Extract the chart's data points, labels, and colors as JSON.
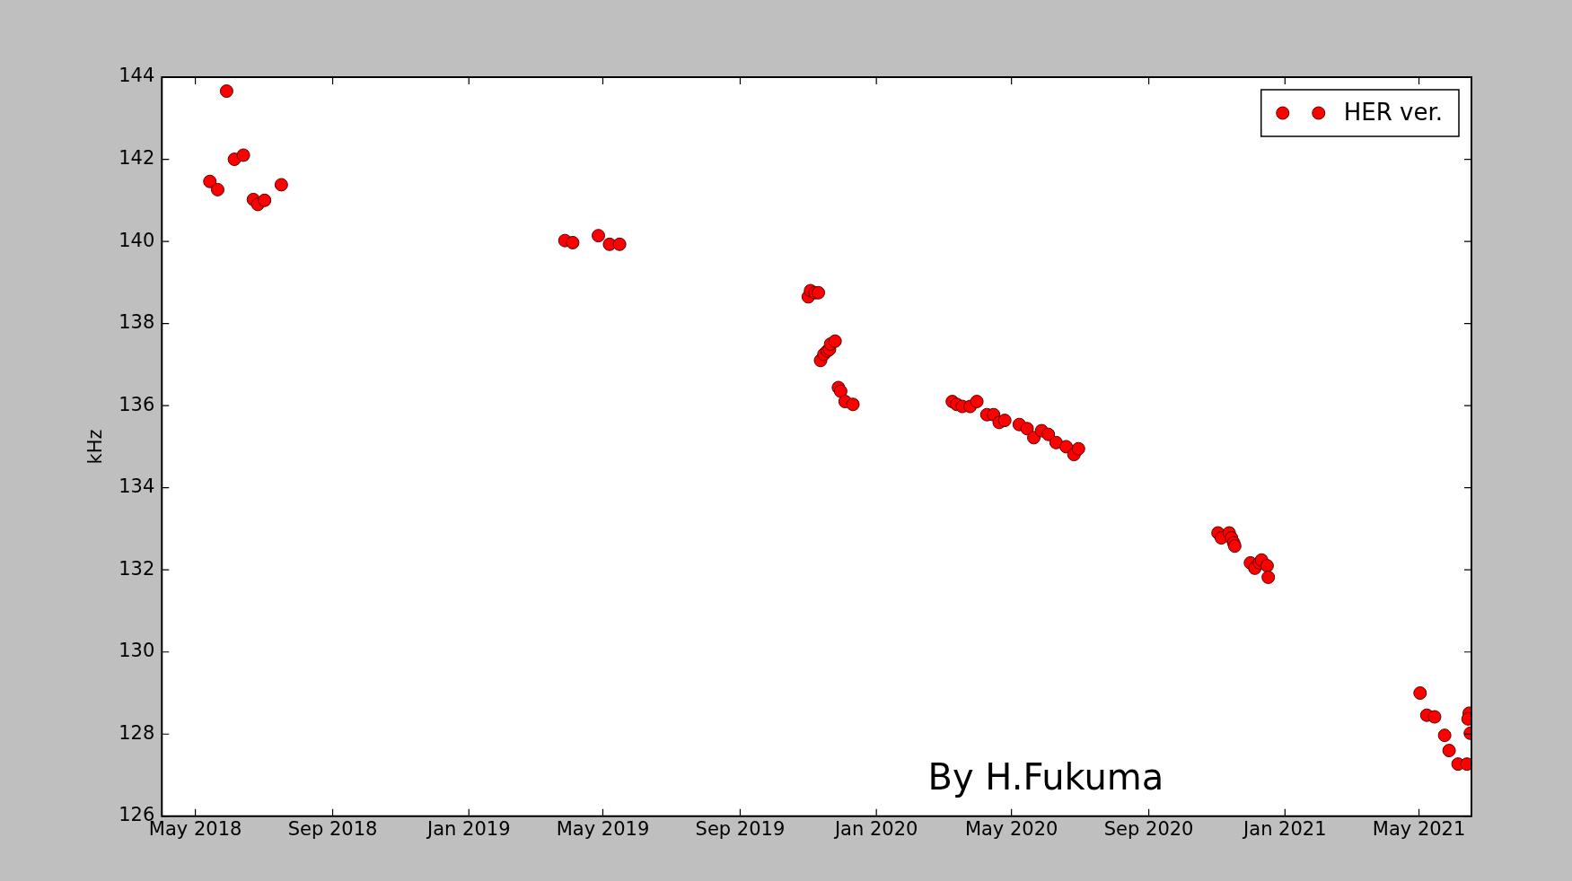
{
  "chart_data": {
    "type": "scatter",
    "ylabel": "kHz",
    "annotations": [
      "By H.Fukuma"
    ],
    "legend": "top right",
    "marker": "circle",
    "grid": false,
    "xlim": [
      "2018-04-01",
      "2021-06-17"
    ],
    "xticks": [
      {
        "value": "2018-05-01",
        "label": "May 2018"
      },
      {
        "value": "2018-09-01",
        "label": "Sep 2018"
      },
      {
        "value": "2019-01-01",
        "label": "Jan 2019"
      },
      {
        "value": "2019-05-01",
        "label": "May 2019"
      },
      {
        "value": "2019-09-01",
        "label": "Sep 2019"
      },
      {
        "value": "2020-01-01",
        "label": "Jan 2020"
      },
      {
        "value": "2020-05-01",
        "label": "May 2020"
      },
      {
        "value": "2020-09-01",
        "label": "Sep 2020"
      },
      {
        "value": "2021-01-01",
        "label": "Jan 2021"
      },
      {
        "value": "2021-05-01",
        "label": "May 2021"
      }
    ],
    "ylim": [
      126,
      144
    ],
    "yticks": [
      126,
      128,
      130,
      132,
      134,
      136,
      138,
      140,
      142,
      144
    ],
    "series": [
      {
        "name": "HER ver.",
        "color": "#ff0000",
        "x": [
          "2018-05-14",
          "2018-05-21",
          "2018-05-29",
          "2018-06-05",
          "2018-06-13",
          "2018-06-22",
          "2018-06-26",
          "2018-07-02",
          "2018-07-17",
          "2019-03-28",
          "2019-04-04",
          "2019-04-27",
          "2019-05-07",
          "2019-05-16",
          "2019-11-01",
          "2019-11-03",
          "2019-11-07",
          "2019-11-10",
          "2019-11-12",
          "2019-11-15",
          "2019-11-18",
          "2019-11-20",
          "2019-11-21",
          "2019-11-25",
          "2019-11-28",
          "2019-11-30",
          "2019-12-04",
          "2019-12-11",
          "2020-03-09",
          "2020-03-13",
          "2020-03-18",
          "2020-03-25",
          "2020-03-31",
          "2020-04-09",
          "2020-04-15",
          "2020-04-20",
          "2020-04-25",
          "2020-05-08",
          "2020-05-15",
          "2020-05-21",
          "2020-05-28",
          "2020-06-03",
          "2020-06-10",
          "2020-06-19",
          "2020-06-26",
          "2020-06-30",
          "2020-11-02",
          "2020-11-05",
          "2020-11-12",
          "2020-11-14",
          "2020-11-16",
          "2020-11-17",
          "2020-12-01",
          "2020-12-05",
          "2020-12-09",
          "2020-12-11",
          "2020-12-16",
          "2020-12-17",
          "2021-05-02",
          "2021-05-08",
          "2021-05-15",
          "2021-05-24",
          "2021-05-28",
          "2021-06-05",
          "2021-06-13",
          "2021-06-15",
          "2021-06-14",
          "2021-06-16"
        ],
        "values": [
          141.46,
          141.26,
          143.66,
          142.0,
          142.1,
          141.02,
          140.9,
          141.0,
          141.38,
          140.02,
          139.97,
          140.14,
          139.93,
          139.93,
          138.65,
          138.8,
          138.75,
          138.75,
          137.1,
          137.25,
          137.33,
          137.37,
          137.5,
          137.57,
          136.44,
          136.35,
          136.1,
          136.03,
          136.1,
          136.03,
          135.98,
          135.98,
          136.1,
          135.78,
          135.78,
          135.59,
          135.64,
          135.54,
          135.44,
          135.22,
          135.39,
          135.3,
          135.1,
          135.0,
          134.81,
          134.95,
          132.9,
          132.78,
          132.9,
          132.78,
          132.66,
          132.58,
          132.17,
          132.04,
          132.17,
          132.24,
          132.1,
          131.82,
          129.0,
          128.46,
          128.42,
          127.97,
          127.6,
          127.27,
          127.27,
          128.51,
          128.37,
          128.02
        ]
      }
    ]
  }
}
